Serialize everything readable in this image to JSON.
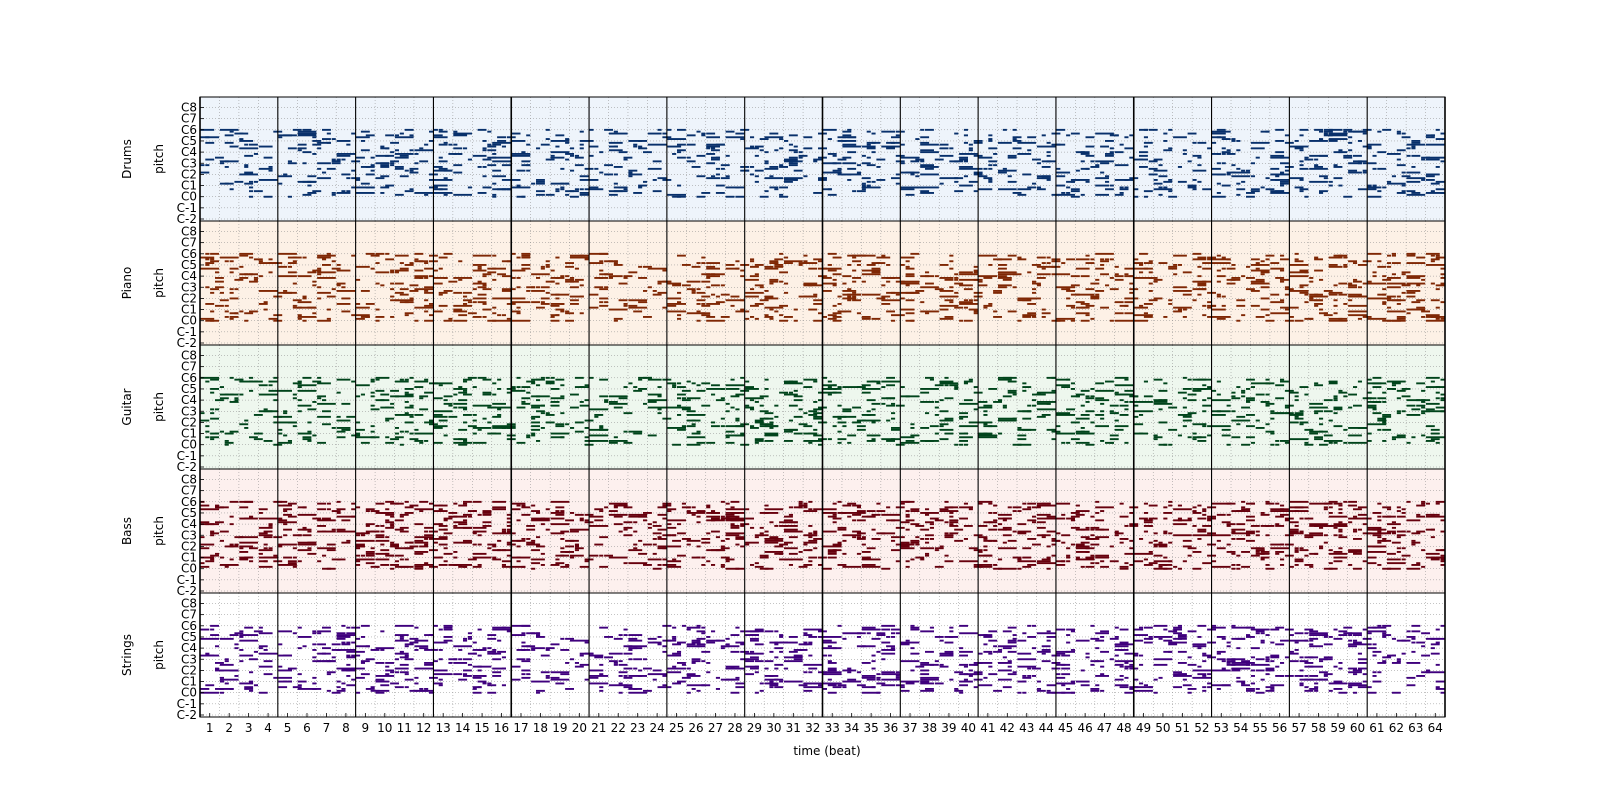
{
  "chart_data": {
    "type": "heatmap",
    "subtype": "multitrack-pianoroll",
    "xlabel": "time (beat)",
    "x_ticks": [
      "1",
      "2",
      "3",
      "4",
      "5",
      "6",
      "7",
      "8",
      "9",
      "10",
      "11",
      "12",
      "13",
      "14",
      "15",
      "16",
      "17",
      "18",
      "19",
      "20",
      "21",
      "22",
      "23",
      "24",
      "25",
      "26",
      "27",
      "28",
      "29",
      "30",
      "31",
      "32",
      "33",
      "34",
      "35",
      "36",
      "37",
      "38",
      "39",
      "40",
      "41",
      "42",
      "43",
      "44",
      "45",
      "46",
      "47",
      "48",
      "49",
      "50",
      "51",
      "52",
      "53",
      "54",
      "55",
      "56",
      "57",
      "58",
      "59",
      "60",
      "61",
      "62",
      "63",
      "64"
    ],
    "xlim": [
      1,
      64
    ],
    "beats": 64,
    "beats_per_bar": 4,
    "downbeat_emphasis_every": 4,
    "y_ticks": [
      "C-2",
      "C-1",
      "C0",
      "C1",
      "C2",
      "C3",
      "C4",
      "C5",
      "C6",
      "C7",
      "C8"
    ],
    "ylim_midi": [
      0,
      127
    ],
    "grid": true,
    "tracks": [
      {
        "name": "Drums",
        "ylabel": "pitch",
        "color": "#08306b",
        "background": "#eef4fb",
        "pitch_range": [
          24,
          96
        ],
        "density": 0.34
      },
      {
        "name": "Piano",
        "ylabel": "pitch",
        "color": "#7f2704",
        "background": "#fdf1e6",
        "pitch_range": [
          24,
          96
        ],
        "density": 0.38
      },
      {
        "name": "Guitar",
        "ylabel": "pitch",
        "color": "#00441b",
        "background": "#eef7ee",
        "pitch_range": [
          24,
          96
        ],
        "density": 0.36
      },
      {
        "name": "Bass",
        "ylabel": "pitch",
        "color": "#67000d",
        "background": "#fdf0ee",
        "pitch_range": [
          24,
          96
        ],
        "density": 0.46
      },
      {
        "name": "Strings",
        "ylabel": "pitch",
        "color": "#3f007d",
        "background": "#ffffff",
        "pitch_range": [
          24,
          96
        ],
        "density": 0.4
      }
    ]
  }
}
